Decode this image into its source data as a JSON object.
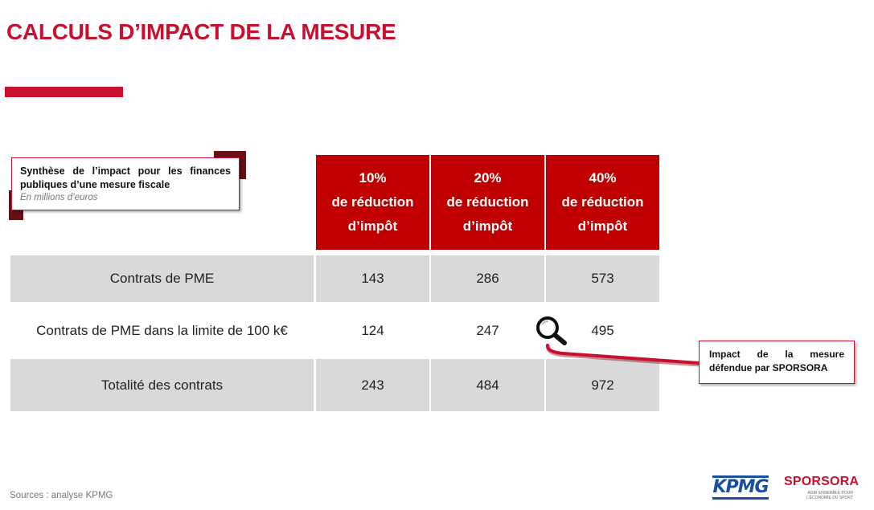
{
  "title": "CALCULS D’IMPACT DE LA MESURE",
  "info_box": {
    "title": "Synthèse de l’impact pour les finances publiques d’une mesure fiscale",
    "subtitle": "En millions d’euros"
  },
  "table": {
    "columns": [
      {
        "pct": "10%",
        "line1": "de réduction",
        "line2": "d’impôt"
      },
      {
        "pct": "20%",
        "line1": "de réduction",
        "line2": "d’impôt"
      },
      {
        "pct": "40%",
        "line1": "de réduction",
        "line2": "d’impôt"
      }
    ],
    "rows": [
      {
        "label": "Contrats de PME",
        "values": [
          "143",
          "286",
          "573"
        ]
      },
      {
        "label": "Contrats de PME dans la limite de 100 k€",
        "values": [
          "124",
          "247",
          "495"
        ]
      },
      {
        "label": "Totalité des contrats",
        "values": [
          "243",
          "484",
          "972"
        ]
      }
    ]
  },
  "callout": "Impact de la mesure défendue par SPORSORA",
  "sources": "Sources : analyse KPMG",
  "logos": {
    "kpmg": "KPMG",
    "sporsora_name": "SPORSORA",
    "sporsora_tagline_1": "AGIR ENSEMBLE POUR",
    "sporsora_tagline_2": "L’ÉCONOMIE DU SPORT"
  },
  "colors": {
    "accent": "#c8102e",
    "header_fill": "#c00000",
    "row_grey": "#d9d9d9"
  }
}
